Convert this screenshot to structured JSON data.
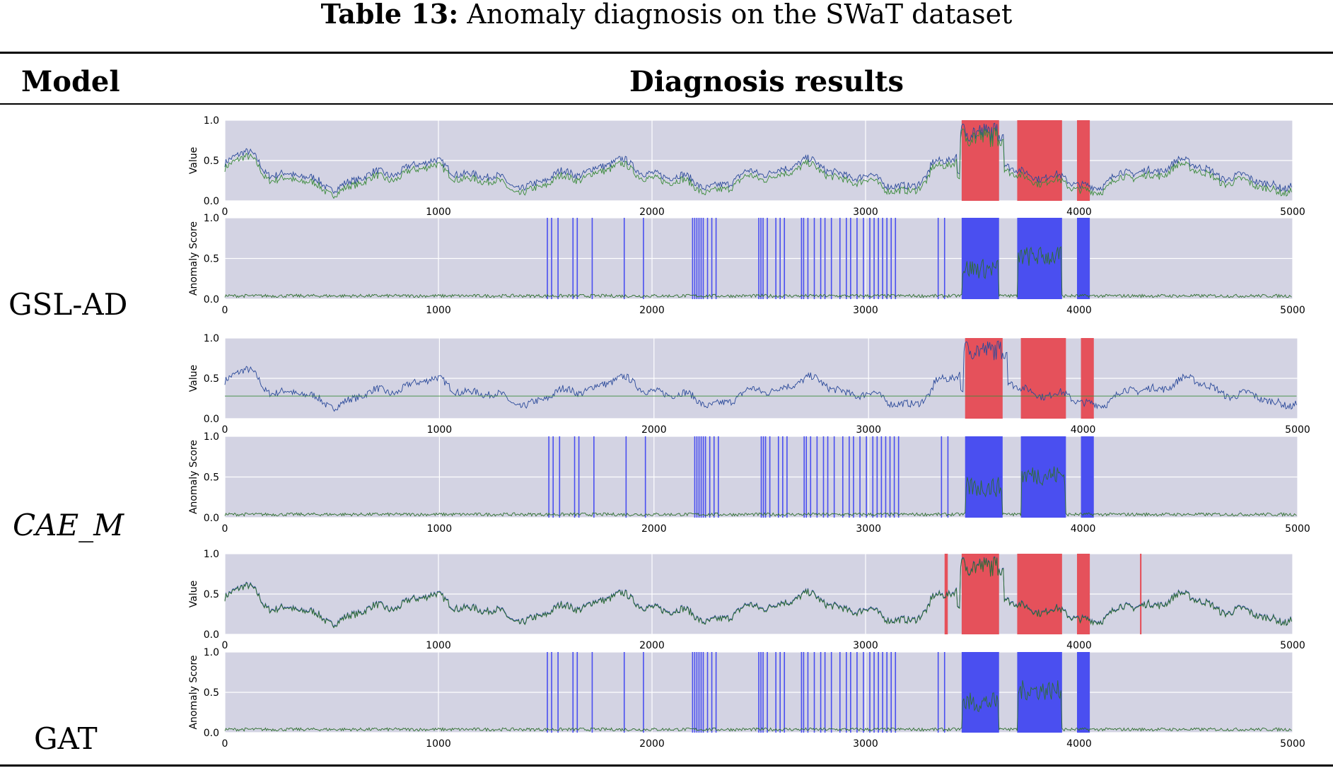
{
  "caption": {
    "label": "Table 13:",
    "text": "Anomaly diagnosis on the SWaT dataset"
  },
  "headers": {
    "model": "Model",
    "results": "Diagnosis results"
  },
  "colors": {
    "plot_bg": "#d3d3e3",
    "grid": "#ffffff",
    "predicted_value": "#2b4a9a",
    "actual_value": "#3a8a3a",
    "score": "#2e6e2e",
    "anomaly_region_value": "#e5515b",
    "anomaly_region_score": "#4a4ff0",
    "axis_text": "#000000"
  },
  "chart_data": [
    {
      "model": "GSL-AD",
      "value_plot": {
        "type": "line",
        "ylabel": "Value",
        "xlim": [
          0,
          5000
        ],
        "ylim": [
          0,
          1
        ],
        "xticks": [
          "0",
          "1000",
          "2000",
          "3000",
          "4000",
          "5000"
        ],
        "yticks": [
          "0.0",
          "0.5",
          "1.0"
        ],
        "series": [
          {
            "name": "predicted",
            "color": "#2b4a9a",
            "offset": 0.0
          },
          {
            "name": "actual",
            "color": "#3a8a3a",
            "offset": -0.06
          }
        ],
        "anomaly_regions": [
          [
            3450,
            3625
          ],
          [
            3710,
            3920
          ],
          [
            3990,
            4050
          ]
        ]
      },
      "score_plot": {
        "type": "line",
        "ylabel": "Anomaly Score",
        "xlim": [
          0,
          5000
        ],
        "ylim": [
          0,
          1
        ],
        "xticks": [
          "0",
          "1000",
          "2000",
          "3000",
          "4000",
          "5000"
        ],
        "yticks": [
          "0.0",
          "0.5",
          "1.0"
        ],
        "flagged_lines": [
          1510,
          1530,
          1560,
          1630,
          1650,
          1720,
          1870,
          1960,
          2190,
          2200,
          2210,
          2220,
          2230,
          2240,
          2260,
          2280,
          2300,
          2500,
          2510,
          2520,
          2540,
          2580,
          2600,
          2620,
          2700,
          2710,
          2730,
          2760,
          2790,
          2810,
          2840,
          2880,
          2910,
          2930,
          2960,
          2990,
          3020,
          3040,
          3060,
          3080,
          3100,
          3120,
          3140,
          3340,
          3370
        ],
        "anomaly_regions": [
          [
            3450,
            3625
          ],
          [
            3710,
            3920
          ],
          [
            3990,
            4050
          ]
        ]
      }
    },
    {
      "model": "CAE_M",
      "value_plot": {
        "type": "line",
        "ylabel": "Value",
        "xlim": [
          0,
          5000
        ],
        "ylim": [
          0,
          1
        ],
        "xticks": [
          "0",
          "1000",
          "2000",
          "3000",
          "4000",
          "5000"
        ],
        "yticks": [
          "0.0",
          "0.5",
          "1.0"
        ],
        "series": [
          {
            "name": "predicted",
            "color": "#2b4a9a",
            "offset": 0.0
          },
          {
            "name": "actual",
            "color": "#3a8a3a",
            "constant": 0.28
          }
        ],
        "anomaly_regions": [
          [
            3450,
            3625
          ],
          [
            3710,
            3920
          ],
          [
            3990,
            4050
          ]
        ]
      },
      "score_plot": {
        "type": "line",
        "ylabel": "Anomaly Score",
        "xlim": [
          0,
          5000
        ],
        "ylim": [
          0,
          1
        ],
        "xticks": [
          "0",
          "1000",
          "2000",
          "3000",
          "4000",
          "5000"
        ],
        "yticks": [
          "0.0",
          "0.5",
          "1.0"
        ],
        "flagged_lines": [
          1510,
          1530,
          1560,
          1630,
          1650,
          1720,
          1870,
          1960,
          2190,
          2200,
          2210,
          2220,
          2230,
          2240,
          2260,
          2280,
          2300,
          2500,
          2510,
          2520,
          2540,
          2580,
          2600,
          2620,
          2700,
          2710,
          2730,
          2760,
          2790,
          2810,
          2840,
          2880,
          2910,
          2930,
          2960,
          2990,
          3020,
          3040,
          3060,
          3080,
          3100,
          3120,
          3140,
          3340,
          3370
        ],
        "anomaly_regions": [
          [
            3450,
            3625
          ],
          [
            3710,
            3920
          ],
          [
            3990,
            4050
          ]
        ]
      }
    },
    {
      "model": "GAT",
      "value_plot": {
        "type": "line",
        "ylabel": "Value",
        "xlim": [
          0,
          5000
        ],
        "ylim": [
          0,
          1
        ],
        "xticks": [
          "0",
          "1000",
          "2000",
          "3000",
          "4000",
          "5000"
        ],
        "yticks": [
          "0.0",
          "0.5",
          "1.0"
        ],
        "series": [
          {
            "name": "predicted",
            "color": "#2b4a9a",
            "offset": 0.0
          },
          {
            "name": "actual",
            "color": "#2e6e2e",
            "offset": -0.01
          }
        ],
        "anomaly_regions": [
          [
            3370,
            3385
          ],
          [
            3450,
            3625
          ],
          [
            3710,
            3920
          ],
          [
            3990,
            4050
          ],
          [
            4285,
            4292
          ]
        ]
      },
      "score_plot": {
        "type": "line",
        "ylabel": "Anomaly Score",
        "xlim": [
          0,
          5000
        ],
        "ylim": [
          0,
          1
        ],
        "xticks": [
          "0",
          "1000",
          "2000",
          "3000",
          "4000",
          "5000"
        ],
        "yticks": [
          "0.0",
          "0.5",
          "1.0"
        ],
        "flagged_lines": [
          1510,
          1530,
          1560,
          1630,
          1650,
          1720,
          1870,
          1960,
          2190,
          2200,
          2210,
          2220,
          2230,
          2240,
          2260,
          2280,
          2300,
          2500,
          2510,
          2520,
          2540,
          2580,
          2600,
          2620,
          2700,
          2710,
          2730,
          2760,
          2790,
          2810,
          2840,
          2880,
          2910,
          2930,
          2960,
          2990,
          3020,
          3040,
          3060,
          3080,
          3100,
          3120,
          3140,
          3340,
          3370
        ],
        "anomaly_regions": [
          [
            3450,
            3625
          ],
          [
            3710,
            3920
          ],
          [
            3990,
            4050
          ]
        ]
      }
    }
  ],
  "models": [
    {
      "name": "GSL-AD",
      "italic": false
    },
    {
      "name": "CAE_M",
      "italic": true
    },
    {
      "name": "GAT",
      "italic": false
    }
  ]
}
